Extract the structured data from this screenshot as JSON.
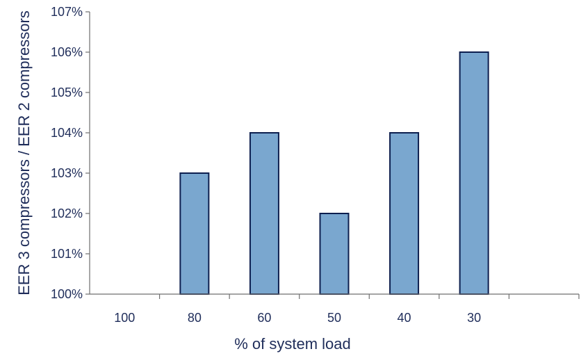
{
  "chart_data": {
    "type": "bar",
    "title": "",
    "xlabel": "% of system load",
    "ylabel": "EER 3 compressors / EER 2 compressors",
    "categories": [
      "100",
      "80",
      "60",
      "50",
      "40",
      "30"
    ],
    "values": [
      100,
      103,
      104,
      102,
      104,
      106
    ],
    "ylim": [
      100,
      107
    ],
    "yticks": [
      "100%",
      "101%",
      "102%",
      "103%",
      "104%",
      "105%",
      "106%",
      "107%"
    ],
    "grid": false,
    "bar_color": "#7aa7cf",
    "bar_edge_color": "#0d1f4f",
    "text_color": "#1f2d5a"
  }
}
